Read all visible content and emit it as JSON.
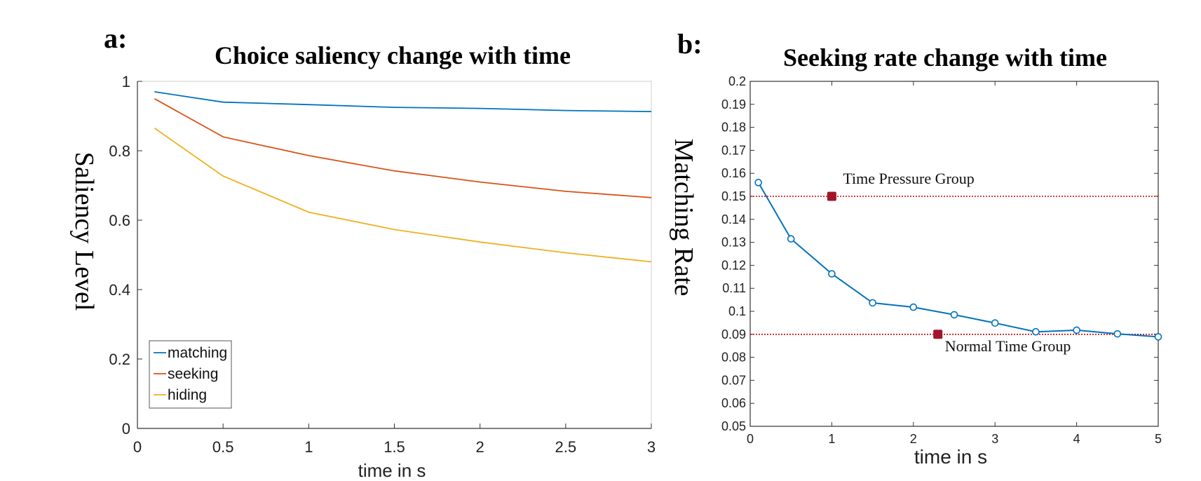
{
  "chart_data": [
    {
      "type": "line",
      "panel_label": "a:",
      "title": "Choice saliency change with time",
      "xlabel": "time in s",
      "ylabel": "Saliency Level",
      "xlim": [
        0,
        3
      ],
      "ylim": [
        0,
        1
      ],
      "xticks": [
        "0",
        "0.5",
        "1",
        "1.5",
        "2",
        "2.5",
        "3"
      ],
      "yticks": [
        "0",
        "0.2",
        "0.4",
        "0.6",
        "0.8",
        "1"
      ],
      "grid": false,
      "legend_position": "bottom-left",
      "x": [
        0.1,
        0.5,
        1.0,
        1.5,
        2.0,
        2.5,
        3.0
      ],
      "series": [
        {
          "name": "matching",
          "color": "#0072BD",
          "values": [
            0.97,
            0.94,
            0.933,
            0.925,
            0.922,
            0.916,
            0.913
          ]
        },
        {
          "name": "seeking",
          "color": "#D95319",
          "values": [
            0.95,
            0.84,
            0.786,
            0.742,
            0.71,
            0.683,
            0.665
          ]
        },
        {
          "name": "hiding",
          "color": "#EDB120",
          "values": [
            0.865,
            0.727,
            0.623,
            0.573,
            0.537,
            0.506,
            0.48
          ]
        }
      ]
    },
    {
      "type": "line",
      "panel_label": "b:",
      "title": "Seeking rate change with time",
      "xlabel": "time in s",
      "ylabel": "Matching Rate",
      "xlim": [
        0,
        5
      ],
      "ylim": [
        0.05,
        0.2
      ],
      "xticks": [
        "0",
        "1",
        "2",
        "3",
        "4",
        "5"
      ],
      "yticks": [
        "0.05",
        "0.06",
        "0.07",
        "0.08",
        "0.09",
        "0.1",
        "0.11",
        "0.12",
        "0.13",
        "0.14",
        "0.15",
        "0.16",
        "0.17",
        "0.18",
        "0.19",
        "0.2"
      ],
      "grid": false,
      "series": [
        {
          "color": "#0072BD",
          "x": [
            0.1,
            0.5,
            1.0,
            1.5,
            2.0,
            2.5,
            3.0,
            3.5,
            4.0,
            4.5,
            5.0
          ],
          "values": [
            0.156,
            0.1315,
            0.1163,
            0.1037,
            0.1018,
            0.0985,
            0.0949,
            0.0911,
            0.0918,
            0.0902,
            0.0889
          ]
        }
      ],
      "reference_lines": [
        {
          "y": 0.15,
          "color": "#CC0000",
          "style": "dotted"
        },
        {
          "y": 0.09,
          "color": "#CC0000",
          "style": "dotted"
        }
      ],
      "markers": [
        {
          "label": "Time Pressure Group",
          "x": 1.0,
          "y": 0.15,
          "color": "#A0152A"
        },
        {
          "label": "Normal Time Group",
          "x": 2.3,
          "y": 0.09,
          "color": "#A0152A"
        }
      ]
    }
  ]
}
